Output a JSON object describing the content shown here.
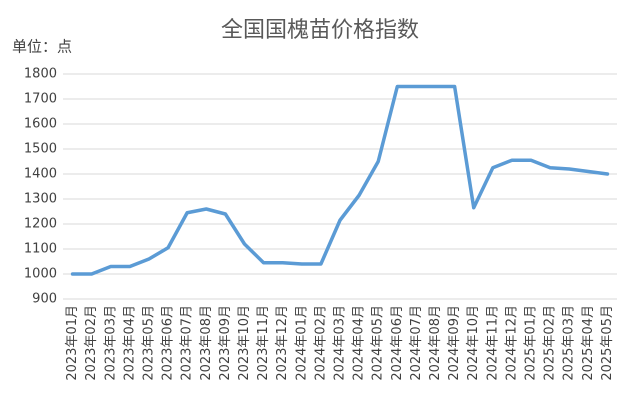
{
  "chart_data": {
    "type": "line",
    "title": "全国国槐苗价格指数",
    "annotation": "单位：点",
    "categories": [
      "2023年01月",
      "2023年02月",
      "2023年03月",
      "2023年04月",
      "2023年05月",
      "2023年06月",
      "2023年07月",
      "2023年08月",
      "2023年09月",
      "2023年10月",
      "2023年11月",
      "2023年12月",
      "2024年01月",
      "2024年02月",
      "2024年03月",
      "2024年04月",
      "2024年05月",
      "2024年06月",
      "2024年07月",
      "2024年08月",
      "2024年09月",
      "2024年10月",
      "2024年11月",
      "2024年12月",
      "2025年01月",
      "2025年02月",
      "2025年03月",
      "2025年04月",
      "2025年05月"
    ],
    "values": [
      1000,
      1000,
      1030,
      1030,
      1060,
      1105,
      1245,
      1260,
      1240,
      1120,
      1045,
      1045,
      1040,
      1040,
      1215,
      1315,
      1450,
      1750,
      1750,
      1750,
      1750,
      1265,
      1425,
      1455,
      1455,
      1425,
      1420,
      1410,
      1400
    ],
    "color": "#5b9bd5",
    "ylim": [
      900,
      1800
    ],
    "yticks": [
      900,
      1000,
      1100,
      1200,
      1300,
      1400,
      1500,
      1600,
      1700,
      1800
    ],
    "grid": true
  }
}
